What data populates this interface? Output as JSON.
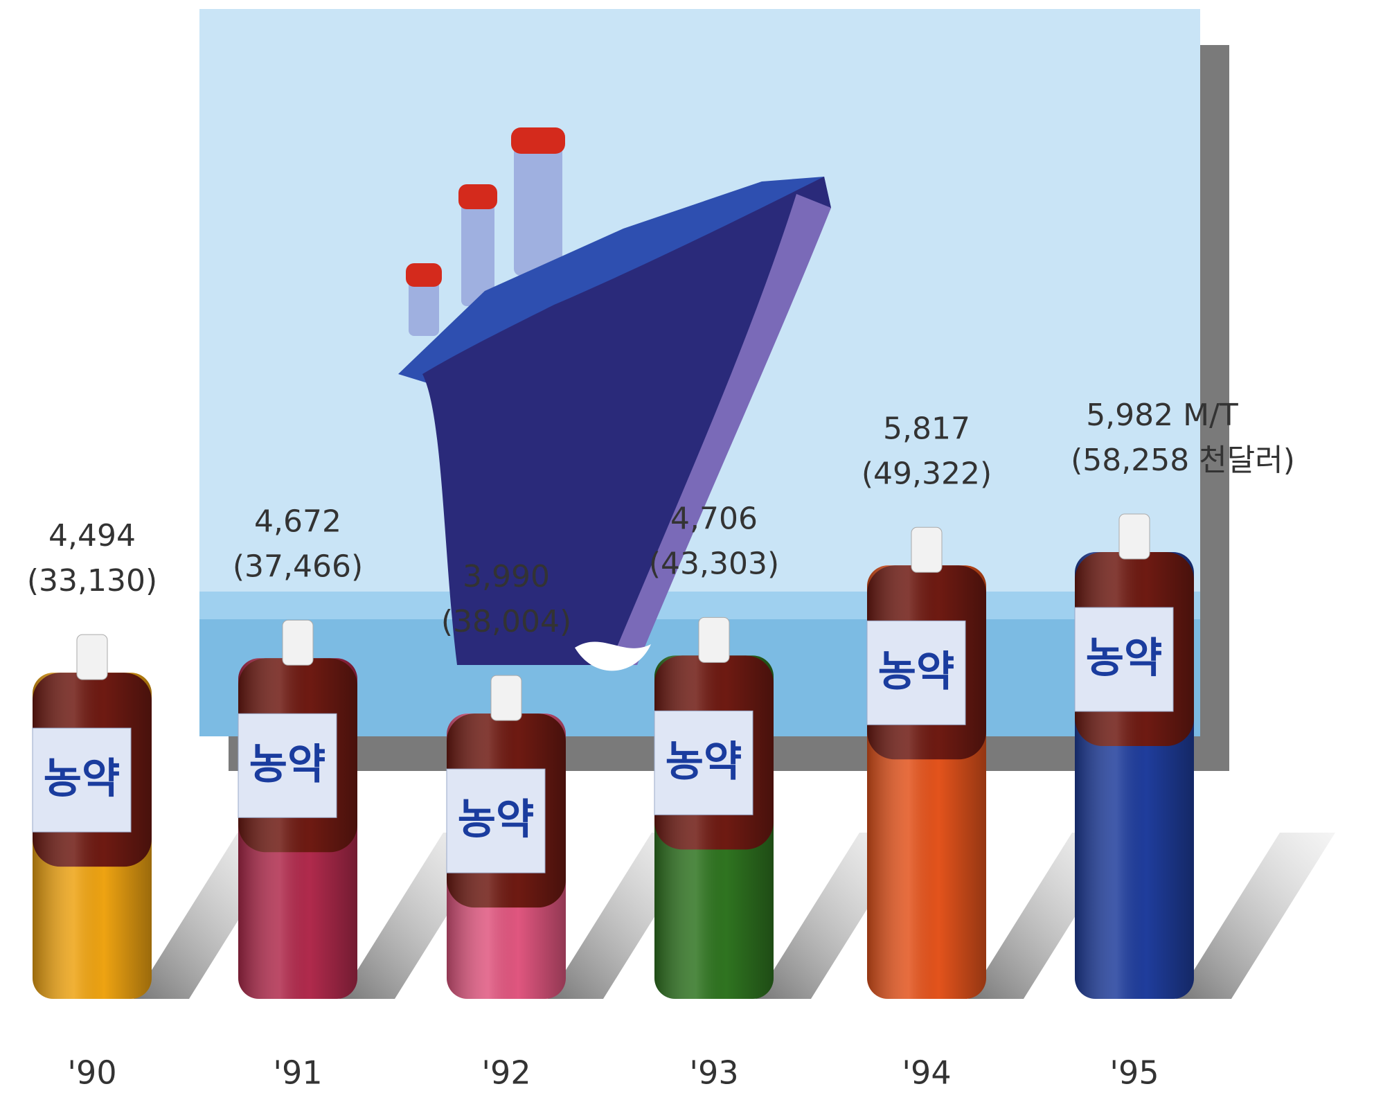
{
  "chart_data": {
    "type": "bar",
    "categories": [
      "'90",
      "'91",
      "'92",
      "'93",
      "'94",
      "'95"
    ],
    "series": [
      {
        "values": [
          4494,
          4672,
          3990,
          4706,
          5817,
          5982
        ],
        "value_labels": [
          "4,494",
          "4,672",
          "3,990",
          "4,706",
          "5,817",
          "5,982 M/T"
        ]
      },
      {
        "values": [
          33130,
          37466,
          38004,
          43303,
          49322,
          58258
        ],
        "value_labels": [
          "(33,130)",
          "(37,466)",
          "(38,004)",
          "(43,303)",
          "(49,322)",
          "(58,258 천달러)"
        ]
      }
    ],
    "colors": [
      "#eea312",
      "#b02a4c",
      "#e0567f",
      "#2f7420",
      "#e3531c",
      "#1f3d9c"
    ],
    "bottle_label": "농약"
  }
}
